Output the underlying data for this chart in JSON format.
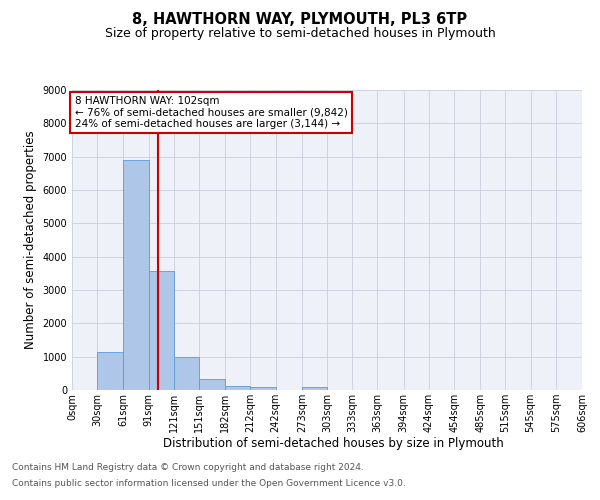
{
  "title": "8, HAWTHORN WAY, PLYMOUTH, PL3 6TP",
  "subtitle": "Size of property relative to semi-detached houses in Plymouth",
  "xlabel": "Distribution of semi-detached houses by size in Plymouth",
  "ylabel": "Number of semi-detached properties",
  "footnote1": "Contains HM Land Registry data © Crown copyright and database right 2024.",
  "footnote2": "Contains public sector information licensed under the Open Government Licence v3.0.",
  "annotation_title": "8 HAWTHORN WAY: 102sqm",
  "annotation_line1": "← 76% of semi-detached houses are smaller (9,842)",
  "annotation_line2": "24% of semi-detached houses are larger (3,144) →",
  "property_size": 102,
  "bar_left_edges": [
    0,
    30,
    61,
    91,
    121,
    151,
    182,
    212,
    242,
    273,
    303,
    333,
    363,
    394,
    424,
    454,
    485,
    515,
    545,
    575
  ],
  "bar_widths": [
    30,
    31,
    30,
    30,
    30,
    31,
    30,
    30,
    31,
    30,
    30,
    30,
    31,
    30,
    30,
    31,
    30,
    30,
    30,
    31
  ],
  "bar_heights": [
    0,
    1130,
    6900,
    3560,
    980,
    330,
    120,
    90,
    0,
    90,
    0,
    0,
    0,
    0,
    0,
    0,
    0,
    0,
    0,
    0
  ],
  "bar_color": "#aec6e8",
  "bar_edge_color": "#5b9bd5",
  "vline_x": 102,
  "vline_color": "#cc0000",
  "ylim": [
    0,
    9000
  ],
  "yticks": [
    0,
    1000,
    2000,
    3000,
    4000,
    5000,
    6000,
    7000,
    8000,
    9000
  ],
  "xtick_labels": [
    "0sqm",
    "30sqm",
    "61sqm",
    "91sqm",
    "121sqm",
    "151sqm",
    "182sqm",
    "212sqm",
    "242sqm",
    "273sqm",
    "303sqm",
    "333sqm",
    "363sqm",
    "394sqm",
    "424sqm",
    "454sqm",
    "485sqm",
    "515sqm",
    "545sqm",
    "575sqm",
    "606sqm"
  ],
  "xtick_positions": [
    0,
    30,
    61,
    91,
    121,
    151,
    182,
    212,
    242,
    273,
    303,
    333,
    363,
    394,
    424,
    454,
    485,
    515,
    545,
    575,
    606
  ],
  "grid_color": "#c8d0dc",
  "background_color": "#eef2f8",
  "annotation_box_color": "#ffffff",
  "annotation_box_edge": "#cc0000",
  "title_fontsize": 10.5,
  "subtitle_fontsize": 9,
  "axis_label_fontsize": 8.5,
  "tick_fontsize": 7,
  "annotation_fontsize": 7.5,
  "footnote_fontsize": 6.5
}
